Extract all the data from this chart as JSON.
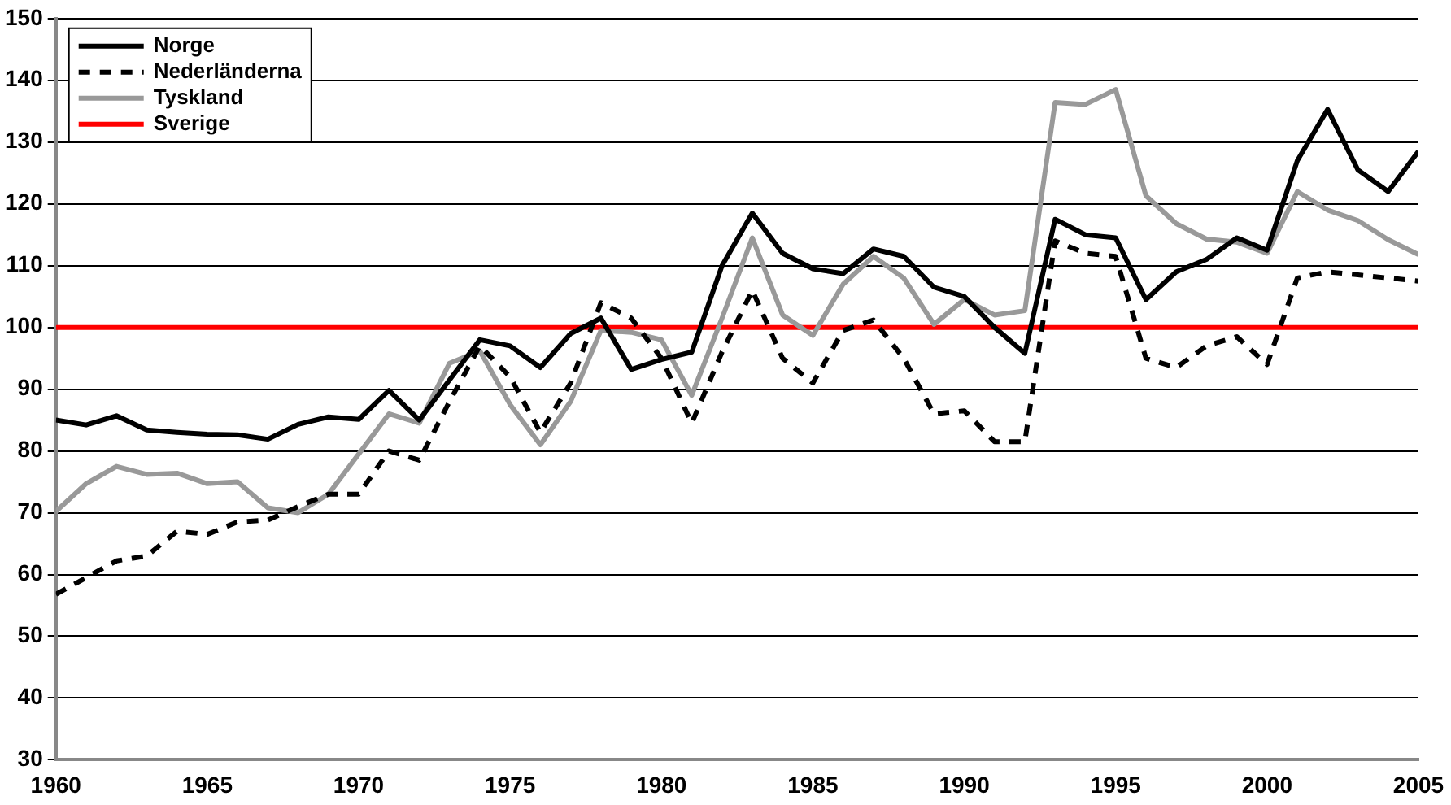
{
  "chart_data": {
    "type": "line",
    "x": [
      1960,
      1961,
      1962,
      1963,
      1964,
      1965,
      1966,
      1967,
      1968,
      1969,
      1970,
      1971,
      1972,
      1973,
      1974,
      1975,
      1976,
      1977,
      1978,
      1979,
      1980,
      1981,
      1982,
      1983,
      1984,
      1985,
      1986,
      1987,
      1988,
      1989,
      1990,
      1991,
      1992,
      1993,
      1994,
      1995,
      1996,
      1997,
      1998,
      1999,
      2000,
      2001,
      2002,
      2003,
      2004,
      2005
    ],
    "series": [
      {
        "name": "Norge",
        "color": "#000000",
        "values": [
          85,
          84.2,
          85.7,
          83.4,
          83,
          82.7,
          82.6,
          81.9,
          84.3,
          85.5,
          85.1,
          89.8,
          85,
          91.5,
          98,
          97,
          93.5,
          99,
          101.5,
          93.2,
          94.8,
          96,
          110,
          118.5,
          112,
          109.5,
          108.7,
          112.7,
          111.5,
          106.5,
          105,
          100,
          95.8,
          117.5,
          115,
          114.5,
          104.5,
          109,
          111,
          114.5,
          112.5,
          127,
          135.3,
          125.5,
          122,
          128.5
        ]
      },
      {
        "name": "Nederländerna",
        "color": "#000000",
        "line_style": "dashed",
        "values": [
          56.8,
          59.5,
          62.2,
          63,
          67,
          66.5,
          68.5,
          68.8,
          71,
          73,
          73,
          80,
          78.5,
          88,
          97,
          92,
          83,
          91,
          104,
          101.5,
          95,
          84.5,
          96,
          106,
          95,
          91,
          99.5,
          101.2,
          95,
          86,
          86.5,
          81.5,
          81.5,
          114,
          112,
          111.5,
          95,
          93.5,
          97,
          98.5,
          94,
          108,
          109,
          108.5,
          108,
          107.5
        ]
      },
      {
        "name": "Tyskland",
        "color": "#999999",
        "values": [
          70.2,
          74.7,
          77.5,
          76.2,
          76.4,
          74.7,
          75,
          70.8,
          70,
          73,
          79.5,
          86,
          84.5,
          94.2,
          96.2,
          87.5,
          81,
          88,
          99.5,
          99.2,
          98,
          89,
          101.5,
          114.5,
          102,
          98.7,
          107,
          111.5,
          108,
          100.5,
          104.5,
          102,
          102.7,
          136.4,
          136.1,
          138.5,
          121.3,
          116.8,
          114.3,
          113.8,
          112,
          122,
          119,
          117.3,
          114.2,
          111.8
        ]
      },
      {
        "name": "Sverige",
        "color": "#ff0000",
        "values": [
          100,
          100,
          100,
          100,
          100,
          100,
          100,
          100,
          100,
          100,
          100,
          100,
          100,
          100,
          100,
          100,
          100,
          100,
          100,
          100,
          100,
          100,
          100,
          100,
          100,
          100,
          100,
          100,
          100,
          100,
          100,
          100,
          100,
          100,
          100,
          100,
          100,
          100,
          100,
          100,
          100,
          100,
          100,
          100,
          100,
          100
        ]
      }
    ],
    "xlim": [
      1960,
      2005
    ],
    "xticks": [
      1960,
      1965,
      1970,
      1975,
      1980,
      1985,
      1990,
      1995,
      2000,
      2005
    ],
    "ylim": [
      30,
      150
    ],
    "yticks": [
      30,
      40,
      50,
      60,
      70,
      80,
      90,
      100,
      110,
      120,
      130,
      140,
      150
    ],
    "grid": "y",
    "legend": "top left",
    "marker": "none"
  }
}
